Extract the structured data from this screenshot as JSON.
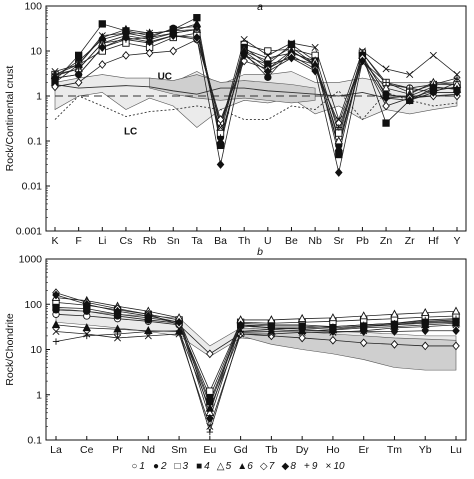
{
  "chart_data": [
    {
      "panel_label": "a",
      "type": "line",
      "ylabel": "Rock/Continental crust",
      "yscale": "log",
      "ylim": [
        0.001,
        100
      ],
      "yticks": [
        "0.001",
        "0.01",
        "0.1",
        "1",
        "10",
        "100"
      ],
      "categories": [
        "K",
        "F",
        "Li",
        "Cs",
        "Rb",
        "Sn",
        "Ta",
        "Ba",
        "Th",
        "U",
        "Be",
        "Nb",
        "Sr",
        "Pb",
        "Zn",
        "Zr",
        "Hf",
        "Y"
      ],
      "series": [
        {
          "name": "1",
          "marker": "open-circle",
          "values": [
            2.5,
            3,
            12,
            18,
            15,
            22,
            18,
            0.25,
            10,
            6,
            12,
            5,
            0.12,
            9,
            1.8,
            1.5,
            1.2,
            2
          ]
        },
        {
          "name": "2",
          "marker": "filled-circle",
          "values": [
            2.8,
            6,
            18,
            25,
            20,
            32,
            35,
            0.12,
            9,
            2.6,
            10,
            4.8,
            0.08,
            7,
            1.1,
            0.9,
            1.3,
            1.6
          ]
        },
        {
          "name": "3",
          "marker": "open-square",
          "values": [
            3,
            5,
            10,
            15,
            12,
            20,
            25,
            0.15,
            14,
            10,
            11,
            8,
            0.15,
            9,
            2,
            1.2,
            1.8,
            1.8
          ]
        },
        {
          "name": "4",
          "marker": "filled-square",
          "values": [
            2.2,
            8,
            40,
            28,
            22,
            30,
            55,
            0.08,
            12,
            5,
            14,
            6,
            0.05,
            8,
            0.25,
            0.8,
            1.5,
            1.5
          ]
        },
        {
          "name": "5",
          "marker": "open-triangle",
          "values": [
            2.8,
            4,
            15,
            22,
            18,
            25,
            30,
            0.2,
            11,
            7,
            9,
            6,
            0.1,
            6,
            1.5,
            1.1,
            2,
            1.8
          ]
        },
        {
          "name": "6",
          "marker": "filled-triangle",
          "values": [
            2,
            5,
            20,
            30,
            25,
            28,
            40,
            0.1,
            10,
            4,
            10,
            5,
            0.07,
            8,
            1,
            1,
            1.6,
            1.4
          ]
        },
        {
          "name": "7",
          "marker": "open-diamond",
          "values": [
            1.6,
            2,
            5,
            8,
            9,
            10,
            18,
            0.3,
            6,
            4,
            8,
            4,
            0.25,
            7,
            0.6,
            0.9,
            1,
            1
          ]
        },
        {
          "name": "8",
          "marker": "filled-diamond",
          "values": [
            2.5,
            3,
            12,
            20,
            16,
            22,
            20,
            0.03,
            8,
            3.5,
            7,
            3.6,
            0.02,
            6,
            0.9,
            0.8,
            1.2,
            1.2
          ]
        },
        {
          "name": "9",
          "marker": "plus",
          "values": [
            3,
            4,
            15,
            18,
            20,
            25,
            30,
            0.12,
            8,
            5,
            7,
            5,
            0.2,
            6,
            2,
            1.5,
            1.8,
            2.5
          ]
        },
        {
          "name": "10",
          "marker": "cross",
          "values": [
            3.5,
            5,
            22,
            25,
            25,
            28,
            30,
            0.2,
            18,
            8,
            15,
            12,
            0.3,
            10,
            4,
            3,
            8,
            3
          ]
        }
      ],
      "reference_lines": [
        {
          "label": "UC",
          "style": "solid",
          "values": [
            1.8,
            1.5,
            1.6,
            1.7,
            1.6,
            1.3,
            1.1,
            1.5,
            1.5,
            1.3,
            1.2,
            1.1,
            1,
            1.2,
            0.9,
            1,
            1,
            1.1
          ]
        },
        {
          "label": "LC",
          "style": "dotted",
          "values": [
            0.3,
            1,
            0.6,
            0.35,
            0.45,
            0.5,
            0.6,
            0.5,
            0.3,
            0.3,
            0.6,
            0.5,
            1.3,
            0.3,
            1.2,
            0.8,
            0.6,
            0.7
          ]
        },
        {
          "label": "",
          "style": "dashed",
          "values": [
            1,
            1,
            1,
            1,
            1,
            1,
            1,
            1,
            1,
            1,
            1,
            1,
            1,
            1,
            1,
            1,
            1,
            1
          ]
        }
      ],
      "bands": [
        {
          "fill": "#ebebeb",
          "lower": [
            0.5,
            1,
            1.2,
            0.5,
            0.9,
            0.6,
            0.2,
            0.5,
            0.8,
            0.7,
            0.9,
            0.4,
            0.6,
            0.3,
            0.5,
            0.4,
            0.5,
            0.6
          ],
          "upper": [
            2,
            2.5,
            3,
            2.5,
            2.5,
            2,
            3.5,
            1.8,
            3,
            3,
            3.5,
            2,
            2,
            2.5,
            2,
            2,
            2,
            2
          ]
        },
        {
          "fill": "#cfcfcf",
          "lower": [
            null,
            null,
            null,
            null,
            1.5,
            1.1,
            0.9,
            0.8,
            0.9,
            0.8,
            0.7,
            0.8,
            null,
            null,
            null,
            null,
            null,
            null
          ],
          "upper": [
            null,
            null,
            null,
            null,
            2.5,
            2.2,
            3,
            2,
            2.2,
            2,
            1.8,
            1.5,
            null,
            null,
            null,
            null,
            null,
            null
          ]
        }
      ],
      "annotations": [
        "UC",
        "LC"
      ]
    },
    {
      "panel_label": "b",
      "type": "line",
      "ylabel": "Rock/Chondrite",
      "yscale": "log",
      "ylim": [
        0.1,
        1000
      ],
      "yticks": [
        "0.1",
        "1",
        "10",
        "100",
        "1000"
      ],
      "categories": [
        "La",
        "Ce",
        "Pr",
        "Nd",
        "Sm",
        "Eu",
        "Gd",
        "Tb",
        "Dy",
        "Ho",
        "Er",
        "Tm",
        "Yb",
        "Lu"
      ],
      "series": [
        {
          "name": "1",
          "marker": "open-circle",
          "values": [
            60,
            55,
            48,
            42,
            35,
            0.6,
            33,
            30,
            30,
            28,
            32,
            35,
            38,
            40
          ]
        },
        {
          "name": "2",
          "marker": "filled-circle",
          "values": [
            75,
            70,
            55,
            45,
            38,
            0.9,
            38,
            35,
            35,
            32,
            35,
            38,
            42,
            45
          ]
        },
        {
          "name": "3",
          "marker": "open-square",
          "values": [
            110,
            95,
            75,
            60,
            45,
            1.2,
            40,
            38,
            40,
            42,
            45,
            48,
            52,
            55
          ]
        },
        {
          "name": "4",
          "marker": "filled-square",
          "values": [
            85,
            80,
            60,
            50,
            40,
            0.7,
            35,
            33,
            33,
            30,
            33,
            36,
            40,
            42
          ]
        },
        {
          "name": "5",
          "marker": "open-triangle",
          "values": [
            140,
            120,
            90,
            70,
            50,
            0.4,
            45,
            45,
            48,
            50,
            55,
            60,
            65,
            70
          ]
        },
        {
          "name": "6",
          "marker": "filled-triangle",
          "values": [
            35,
            30,
            28,
            26,
            25,
            0.5,
            24,
            25,
            26,
            27,
            30,
            32,
            35,
            38
          ]
        },
        {
          "name": "7",
          "marker": "open-diamond",
          "values": [
            180,
            110,
            80,
            60,
            35,
            8,
            22,
            20,
            18,
            16,
            14,
            13,
            12,
            12
          ]
        },
        {
          "name": "8",
          "marker": "filled-diamond",
          "values": [
            160,
            100,
            70,
            55,
            40,
            0.3,
            35,
            30,
            28,
            25,
            25,
            25,
            26,
            26
          ]
        },
        {
          "name": "9",
          "marker": "plus",
          "values": [
            15,
            20,
            22,
            25,
            26,
            0.15,
            25,
            28,
            30,
            32,
            35,
            38,
            45,
            48
          ]
        },
        {
          "name": "10",
          "marker": "cross",
          "values": [
            25,
            22,
            18,
            20,
            22,
            0.2,
            22,
            22,
            24,
            24,
            26,
            30,
            32,
            35
          ]
        }
      ],
      "bands": [
        {
          "fill": "#ebebeb",
          "lower": [
            40,
            35,
            30,
            25,
            20,
            7,
            18,
            16,
            15,
            13,
            12,
            11,
            10,
            10
          ],
          "upper": [
            80,
            70,
            60,
            55,
            50,
            12,
            30,
            28,
            26,
            25,
            24,
            22,
            20,
            20
          ]
        },
        {
          "fill": "#cfcfcf",
          "lower": [
            null,
            null,
            null,
            null,
            null,
            null,
            20,
            13,
            10,
            8,
            6,
            4,
            3.5,
            3.5
          ],
          "upper": [
            null,
            null,
            null,
            null,
            null,
            null,
            30,
            28,
            25,
            22,
            20,
            18,
            17,
            16
          ]
        }
      ]
    }
  ],
  "legend": [
    {
      "marker": "open-circle",
      "glyph": "○",
      "label": "1"
    },
    {
      "marker": "filled-circle",
      "glyph": "●",
      "label": "2"
    },
    {
      "marker": "open-square",
      "glyph": "□",
      "label": "3"
    },
    {
      "marker": "filled-square",
      "glyph": "■",
      "label": "4"
    },
    {
      "marker": "open-triangle",
      "glyph": "△",
      "label": "5"
    },
    {
      "marker": "filled-triangle",
      "glyph": "▲",
      "label": "6"
    },
    {
      "marker": "open-diamond",
      "glyph": "◇",
      "label": "7"
    },
    {
      "marker": "filled-diamond",
      "glyph": "◆",
      "label": "8"
    },
    {
      "marker": "plus",
      "glyph": "+",
      "label": "9"
    },
    {
      "marker": "cross",
      "glyph": "×",
      "label": "10"
    }
  ]
}
